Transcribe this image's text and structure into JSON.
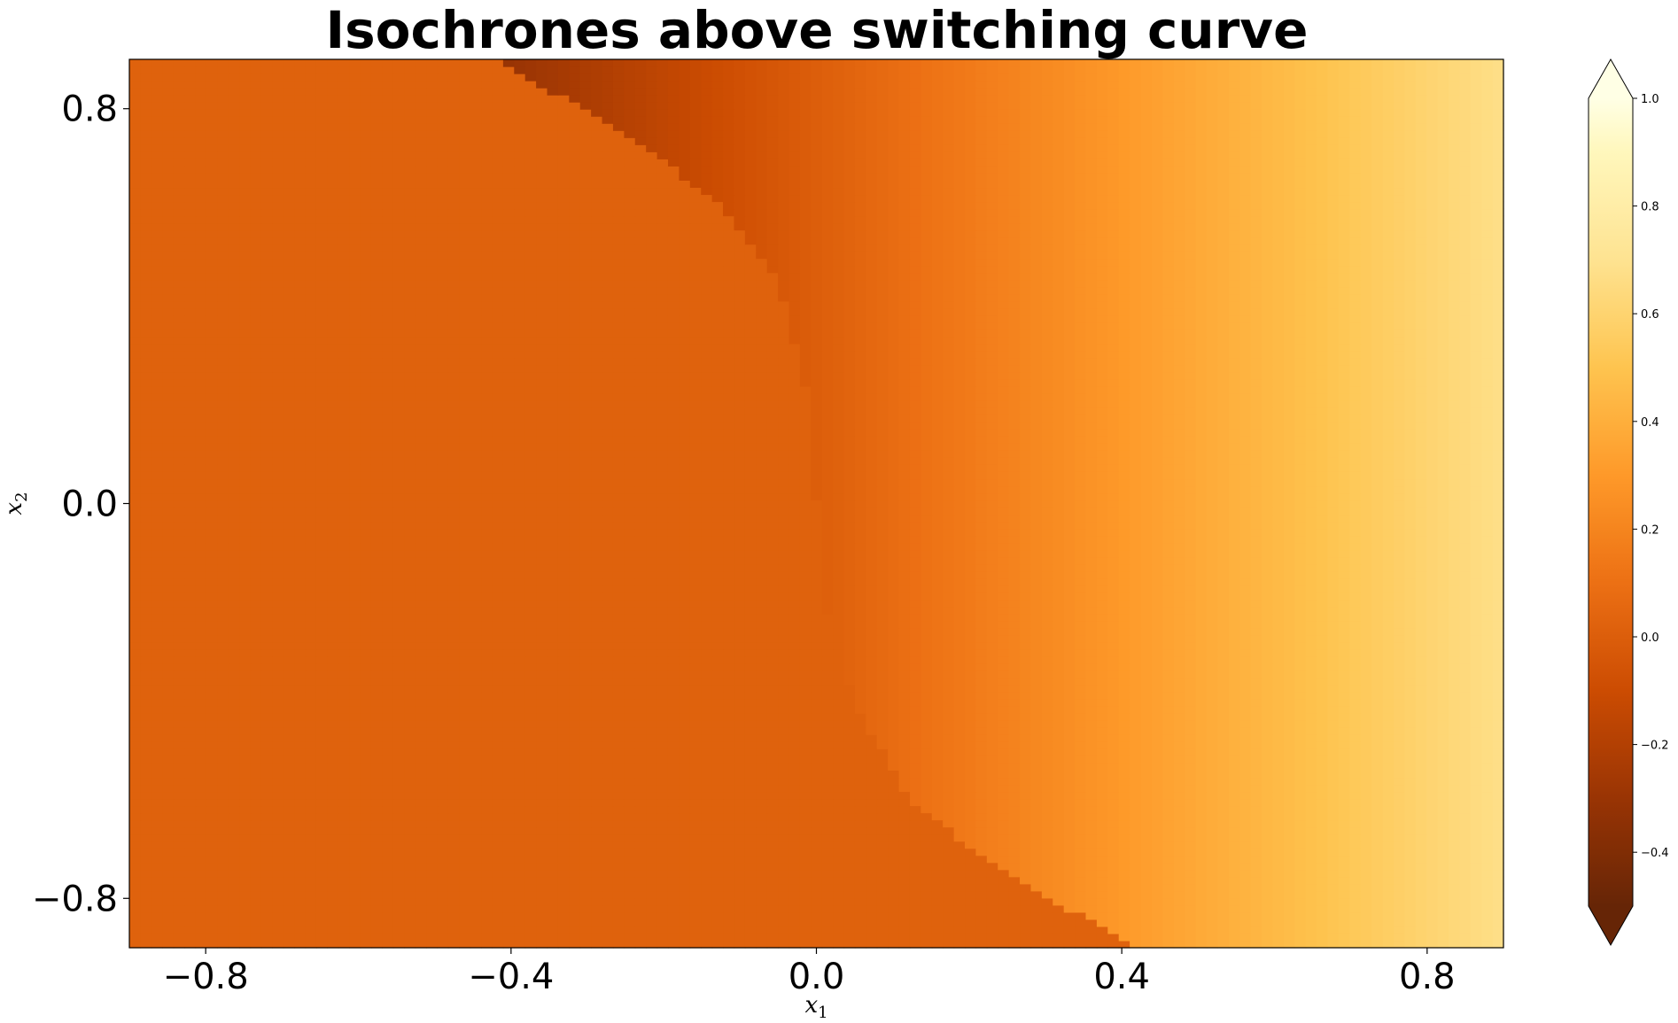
{
  "chart_data": {
    "type": "heatmap",
    "title": "Isochrones above switching curve",
    "xlabel": {
      "base": "x",
      "sub": "1"
    },
    "ylabel": {
      "base": "x",
      "sub": "2"
    },
    "xlim": [
      -0.9,
      0.9
    ],
    "ylim": [
      -0.9,
      0.9
    ],
    "xticks": [
      -0.8,
      -0.4,
      0.0,
      0.4,
      0.8
    ],
    "xtick_labels": [
      "−0.8",
      "−0.4",
      "0.0",
      "0.4",
      "0.8"
    ],
    "yticks": [
      -0.8,
      0.0,
      0.8
    ],
    "ytick_labels": [
      "−0.8",
      "0.0",
      "0.8"
    ],
    "colormap": "YlOrBr_r",
    "color_stops": [
      {
        "v": -0.5,
        "color": "#662506"
      },
      {
        "v": -0.3,
        "color": "#993404"
      },
      {
        "v": -0.1,
        "color": "#cc4c02"
      },
      {
        "v": 0.1,
        "color": "#ec7014"
      },
      {
        "v": 0.3,
        "color": "#fe9929"
      },
      {
        "v": 0.5,
        "color": "#fec44f"
      },
      {
        "v": 0.7,
        "color": "#fee391"
      },
      {
        "v": 0.9,
        "color": "#fff7bc"
      },
      {
        "v": 1.0,
        "color": "#ffffe5"
      }
    ],
    "colorbar": {
      "vmin": -0.5,
      "vmax": 1.0,
      "extend": "both",
      "ticks": [
        -0.4,
        -0.2,
        0.0,
        0.2,
        0.4,
        0.6,
        0.8,
        1.0
      ],
      "tick_labels": [
        "−0.4",
        "−0.2",
        "0.0",
        "0.2",
        "0.4",
        "0.6",
        "0.8",
        "1.0"
      ]
    },
    "field": {
      "grid_resolution": 125,
      "left_region_value": 0.02,
      "right_region_value_formula": "0.75 * x1",
      "upper_wedge_value_formula": "0.75 * x1 (negative, darker)",
      "switching_curve": [
        {
          "x2": 0.9,
          "x1": -0.42
        },
        {
          "x2": 0.75,
          "x1": -0.25
        },
        {
          "x2": 0.6,
          "x1": -0.12
        },
        {
          "x2": 0.45,
          "x1": -0.05
        },
        {
          "x2": 0.21,
          "x1": -0.01
        },
        {
          "x2": -0.2,
          "x1": 0.01
        },
        {
          "x2": -0.4,
          "x1": 0.05
        },
        {
          "x2": -0.6,
          "x1": 0.12
        },
        {
          "x2": -0.75,
          "x1": 0.25
        },
        {
          "x2": -0.9,
          "x1": 0.42
        }
      ]
    },
    "grid": false,
    "legend": "none"
  }
}
